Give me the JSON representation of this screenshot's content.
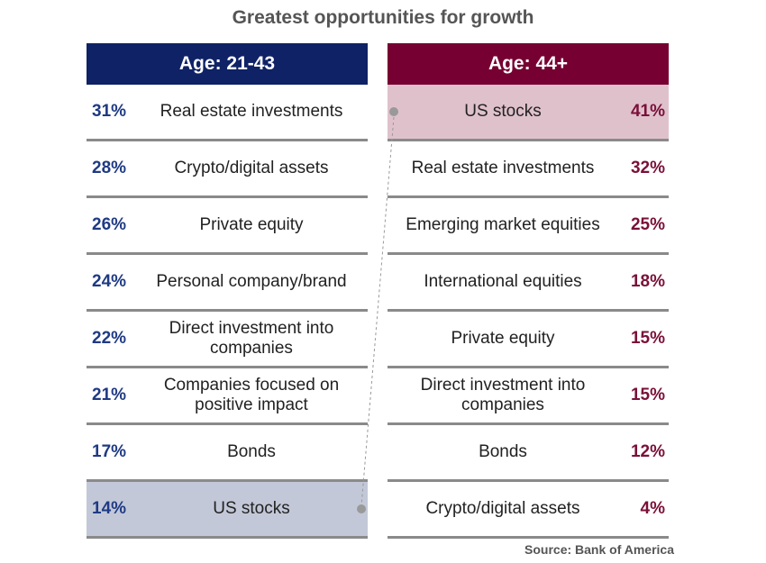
{
  "chart_data": {
    "type": "table",
    "title": "Greatest opportunities for growth",
    "source": "Source: Bank of America",
    "colors": {
      "left": "#0f2266",
      "right": "#760032",
      "left_highlight": "#c3c8d8",
      "right_highlight": "#dfc1cc"
    },
    "groups": [
      {
        "name": "Age: 21-43",
        "rows": [
          {
            "label": "Real estate investments",
            "value": "31%"
          },
          {
            "label": "Crypto/digital assets",
            "value": "28%"
          },
          {
            "label": "Private equity",
            "value": "26%"
          },
          {
            "label": "Personal company/brand",
            "value": "24%"
          },
          {
            "label": "Direct investment into companies",
            "value": "22%"
          },
          {
            "label": "Companies focused on positive impact",
            "value": "21%"
          },
          {
            "label": "Bonds",
            "value": "17%"
          },
          {
            "label": "US stocks",
            "value": "14%",
            "highlight": true
          }
        ]
      },
      {
        "name": "Age: 44+",
        "rows": [
          {
            "label": "US stocks",
            "value": "41%",
            "highlight": true
          },
          {
            "label": "Real estate investments",
            "value": "32%"
          },
          {
            "label": "Emerging market equities",
            "value": "25%"
          },
          {
            "label": "International equities",
            "value": "18%"
          },
          {
            "label": "Private equity",
            "value": "15%"
          },
          {
            "label": "Direct investment into companies",
            "value": "15%"
          },
          {
            "label": "Bonds",
            "value": "12%"
          },
          {
            "label": "Crypto/digital assets",
            "value": "4%"
          }
        ]
      }
    ]
  }
}
